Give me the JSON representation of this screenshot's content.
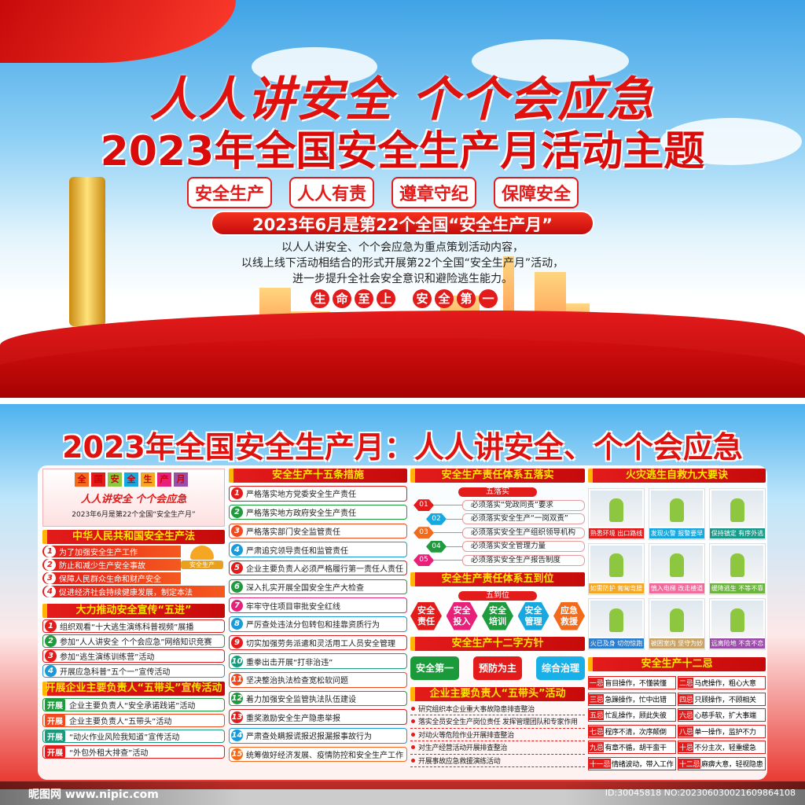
{
  "banner": {
    "title_line1": "人人讲安全 个个会应急",
    "title_line2": "2023年全国安全生产月活动主题",
    "tags": [
      "安全生产",
      "人人有责",
      "遵章守纪",
      "保障安全"
    ],
    "ribbon": "2023年6月是第22个全国“安全生产月”",
    "paragraph": [
      "以人人讲安全、个个会应急为重点策划活动内容，",
      "以线上线下活动相结合的形式开展第22个全国“安全生产月”活动，",
      "进一步提升全社会安全意识和避险逃生能力。"
    ],
    "slogan_a": [
      "生",
      "命",
      "至",
      "上"
    ],
    "slogan_b": [
      "安",
      "全",
      "第",
      "一"
    ]
  },
  "board": {
    "title": "2023年全国安全生产月：人人讲安全、个个会应急",
    "col1": {
      "badge_chars": [
        "全",
        "国",
        "安",
        "全",
        "生",
        "产",
        "月"
      ],
      "badge_slogan": "人人讲安全  个个会应急",
      "badge_sub": "2023年6月是第22个全国“安全生产月”",
      "law_title": "中华人民共和国安全生产法",
      "law_items": [
        "为了加强安全生产工作",
        "防止和减少生产安全事故",
        "保障人民群众生命和财产安全",
        "促进经济社会持续健康发展，制定本法"
      ],
      "helmet_label": "安全生产",
      "wujin_title": "大力推动安全宣传“五进”",
      "wujin_items": [
        "组织观看“十大逃生演练科普视频”展播",
        "参加“人人讲安全 个个会应急”网络知识竞赛",
        "参加“逃生演练训练营”活动",
        "开展应急科普“五个一”宣传活动"
      ],
      "wujin_colors": [
        "#e31b1b",
        "#1f9a3c",
        "#e31b1b",
        "#1a9ad8"
      ],
      "wudai_title": "开展企业主要负责人“五带头”宣传活动",
      "wudai_tag": "开展",
      "wudai_items": [
        "企业主要负责人“安全承诺践诺”活动",
        "企业主要负责人“五带头”活动",
        "“动火作业风险我知道”宣传活动",
        "“外包外租大排查”活动"
      ],
      "wudai_colors": [
        "#1f9a3c",
        "#f04a1e",
        "#1a9a7a",
        "#e31b1b"
      ]
    },
    "col2": {
      "title": "安全生产十五条措施",
      "items": [
        "严格落实地方党委安全生产责任",
        "严格落实地方政府安全生产责任",
        "严格落实部门安全监管责任",
        "严肃追究领导责任和监管责任",
        "企业主要负责人必须严格履行第一责任人责任",
        "深入扎实开展全国安全生产大检查",
        "牢牢守住项目审批安全红线",
        "严厉查处违法分包转包和挂靠资质行为",
        "切实加强劳务派遣和灵活用工人员安全管理",
        "重拳出击开展“打非治违”",
        "坚决整治执法检查宽松软问题",
        "着力加强安全监管执法队伍建设",
        "重奖激励安全生产隐患举报",
        "严肃查处瞒报谎报迟报漏报事故行为",
        "统筹做好经济发展、疫情防控和安全生产工作"
      ],
      "colors": [
        "#e31b1b",
        "#1f9a3c",
        "#f04a1e",
        "#1a9ad8",
        "#e31b1b",
        "#1f9a3c",
        "#e8207a",
        "#1a9ad8",
        "#e31b1b",
        "#1a9a7a",
        "#f04a1e",
        "#1f9a3c",
        "#e31b1b",
        "#1a9ad8",
        "#f26a1b"
      ]
    },
    "col3": {
      "luoshi_title": "安全生产责任体系五落实",
      "luoshi_pill": "五落实",
      "luoshi_nums": [
        "01",
        "02",
        "03",
        "04",
        "05"
      ],
      "luoshi_colors": [
        "#e31b1b",
        "#18a8e0",
        "#f26a1b",
        "#1f9a3c",
        "#e8207a"
      ],
      "luoshi_items": [
        "必须落实“党政同责”要求",
        "必须落实安全生产“一岗双责”",
        "必须落实安全生产组织领导机构",
        "必须落实安全管理力量",
        "必须落实安全生产报告制度"
      ],
      "daowei_title": "安全生产责任体系五到位",
      "daowei_pill": "五到位",
      "daowei_items": [
        [
          "安全",
          "责任"
        ],
        [
          "安全",
          "投入"
        ],
        [
          "安全",
          "培训"
        ],
        [
          "安全",
          "管理"
        ],
        [
          "应急",
          "救援"
        ]
      ],
      "daowei_colors": [
        "#e31b1b",
        "#e8207a",
        "#1f9a3c",
        "#18a8e0",
        "#f26a1b"
      ],
      "fangzhen_title": "安全生产十二字方针",
      "fangzhen_items": [
        "安全第一",
        "预防为主",
        "综合治理"
      ],
      "fangzhen_colors": [
        "#1a9a3a",
        "#e31b1b",
        "#19b0e8"
      ],
      "wudaitou_title": "企业主要负责人“五带头”活动",
      "wudaitou_items": [
        "研究组织本企业重大事故隐患排查整治",
        "落实全员安全生产岗位责任 发挥管理团队和专家作用",
        "对动火等危险作业开展排查整治",
        "对生产经营活动开展排查整治",
        "开展事故应急救援演练活动"
      ]
    },
    "col4": {
      "fire_title": "火灾逃生自救九大要诀",
      "fire_items": [
        "熟悉环境 出口路线",
        "发现火警 报警要早",
        "保持镇定 有序外逃",
        "如需防护 匍匐弯腰",
        "慎入电梯 改走楼道",
        "缓降逃生 不等不靠",
        "火已及身 切勿惊跑",
        "被困室内 坚守为妙",
        "远离险地 不贪不恋"
      ],
      "fire_colors": [
        "#e31b1b",
        "#18a8e0",
        "#1a9a8a",
        "#f5a623",
        "#f06a9a",
        "#6cb33f",
        "#2a7fd0",
        "#c8a46a",
        "#9b4ea8"
      ],
      "ji_title": "安全生产十二忌",
      "ji_items": [
        [
          "一忌",
          "盲目操作，不懂装懂"
        ],
        [
          "二忌",
          "马虎操作，粗心大意"
        ],
        [
          "三忌",
          "急躁操作，忙中出错"
        ],
        [
          "四忌",
          "只顾操作，不顾相关"
        ],
        [
          "五忌",
          "忙乱操作，顾此失彼"
        ],
        [
          "六忌",
          "心慈手软，扩大事端"
        ],
        [
          "七忌",
          "程序不清，次序颠倒"
        ],
        [
          "八忌",
          "单一操作，监护不力"
        ],
        [
          "九忌",
          "有章不循，胡干蛮干"
        ],
        [
          "十忌",
          "不分主次，轻重缓急"
        ],
        [
          "十一忌",
          "情绪波动，带入工作"
        ],
        [
          "十二忌",
          "麻痹大意，轻视隐患"
        ]
      ]
    }
  },
  "watermark": {
    "site": "昵图网 www.nipic.com",
    "id": "ID:30045818 NO:202306030021609864108"
  }
}
